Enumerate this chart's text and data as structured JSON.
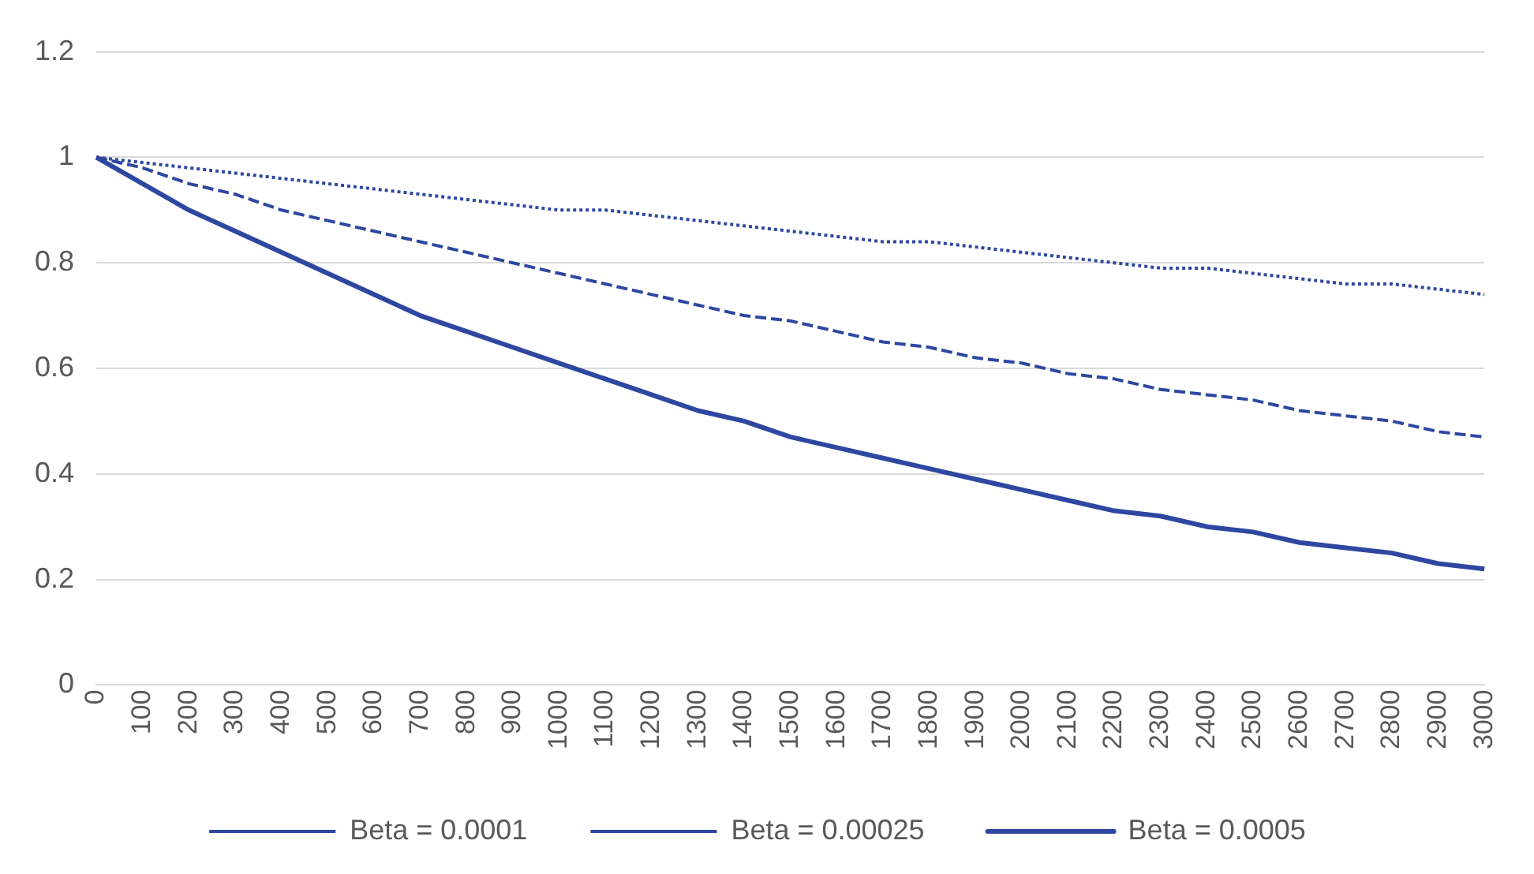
{
  "chart_data": {
    "type": "line",
    "categories": [
      "0",
      "100",
      "200",
      "300",
      "400",
      "500",
      "600",
      "700",
      "800",
      "900",
      "1000",
      "1100",
      "1200",
      "1300",
      "1400",
      "1500",
      "1600",
      "1700",
      "1800",
      "1900",
      "2000",
      "2100",
      "2200",
      "2300",
      "2400",
      "2500",
      "2600",
      "2700",
      "2800",
      "2900",
      "3000"
    ],
    "series": [
      {
        "name": "Beta = 0.0001",
        "color": "#2e47a0",
        "line_style": "dotted",
        "values": [
          1,
          0.99,
          0.98,
          0.97,
          0.96,
          0.95,
          0.94,
          0.93,
          0.92,
          0.91,
          0.9,
          0.9,
          0.89,
          0.88,
          0.87,
          0.86,
          0.85,
          0.84,
          0.84,
          0.83,
          0.82,
          0.81,
          0.8,
          0.79,
          0.79,
          0.78,
          0.77,
          0.76,
          0.76,
          0.75,
          0.74
        ]
      },
      {
        "name": "Beta = 0.00025",
        "color": "#2e47a0",
        "line_style": "dashed",
        "values": [
          1,
          0.98,
          0.95,
          0.93,
          0.9,
          0.88,
          0.86,
          0.84,
          0.82,
          0.8,
          0.78,
          0.76,
          0.74,
          0.72,
          0.7,
          0.69,
          0.67,
          0.65,
          0.64,
          0.62,
          0.61,
          0.59,
          0.58,
          0.56,
          0.55,
          0.54,
          0.52,
          0.51,
          0.5,
          0.48,
          0.47
        ]
      },
      {
        "name": "Beta = 0.0005",
        "color": "#2e47a0",
        "line_style": "solid",
        "values": [
          1,
          0.95,
          0.9,
          0.86,
          0.82,
          0.78,
          0.74,
          0.7,
          0.67,
          0.64,
          0.61,
          0.58,
          0.55,
          0.52,
          0.5,
          0.47,
          0.45,
          0.43,
          0.41,
          0.39,
          0.37,
          0.35,
          0.33,
          0.32,
          0.3,
          0.29,
          0.27,
          0.26,
          0.25,
          0.23,
          0.22
        ]
      }
    ],
    "ylim": [
      0,
      1.2
    ],
    "yticks": [
      0,
      0.2,
      0.4,
      0.6,
      0.8,
      1,
      1.2
    ],
    "grid": "y",
    "legend": "bottom",
    "marker": "none"
  }
}
